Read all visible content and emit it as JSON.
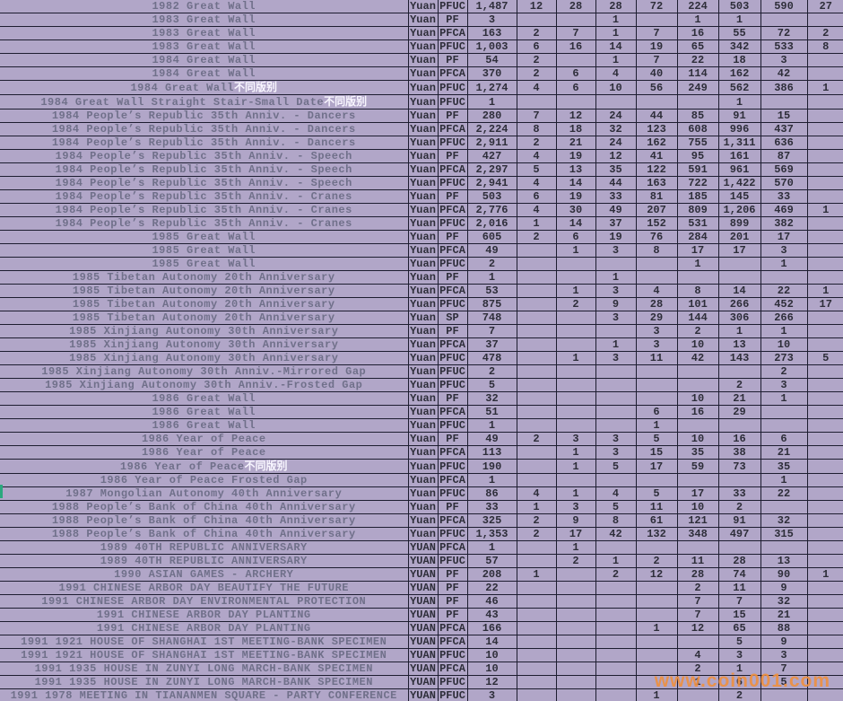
{
  "watermark": "www.coin001.com",
  "colors": {
    "background": "#b1a6c8",
    "gridline": "#1d1d30",
    "name_text": "#70708a",
    "data_text": "#2e2e3a",
    "suffix_text": "#f8f6ff",
    "watermark": "#ee9040",
    "row_marker": "#2ba87e"
  },
  "rows": [
    {
      "name": "1982 Great Wall",
      "suffix": "",
      "currency": "Yuan",
      "grade": "PFUC",
      "total": "1,487",
      "cols": [
        "12",
        "28",
        "28",
        "72",
        "224",
        "503",
        "590",
        "27"
      ]
    },
    {
      "name": "1983 Great Wall",
      "suffix": "",
      "currency": "Yuan",
      "grade": "PF",
      "total": "3",
      "cols": [
        "",
        "",
        "1",
        "",
        "1",
        "1",
        "",
        ""
      ]
    },
    {
      "name": "1983 Great Wall",
      "suffix": "",
      "currency": "Yuan",
      "grade": "PFCA",
      "total": "163",
      "cols": [
        "2",
        "7",
        "1",
        "7",
        "16",
        "55",
        "72",
        "2"
      ]
    },
    {
      "name": "1983 Great Wall",
      "suffix": "",
      "currency": "Yuan",
      "grade": "PFUC",
      "total": "1,003",
      "cols": [
        "6",
        "16",
        "14",
        "19",
        "65",
        "342",
        "533",
        "8"
      ]
    },
    {
      "name": "1984 Great Wall",
      "suffix": "",
      "currency": "Yuan",
      "grade": "PF",
      "total": "54",
      "cols": [
        "2",
        "",
        "1",
        "7",
        "22",
        "18",
        "3",
        ""
      ]
    },
    {
      "name": "1984 Great Wall",
      "suffix": "",
      "currency": "Yuan",
      "grade": "PFCA",
      "total": "370",
      "cols": [
        "2",
        "6",
        "4",
        "40",
        "114",
        "162",
        "42",
        ""
      ]
    },
    {
      "name": "1984 Great Wall",
      "suffix": "不同版别",
      "currency": "Yuan",
      "grade": "PFUC",
      "total": "1,274",
      "cols": [
        "4",
        "6",
        "10",
        "56",
        "249",
        "562",
        "386",
        "1"
      ]
    },
    {
      "name": "1984 Great Wall Straight Stair-Small Date",
      "suffix": "不同版别",
      "currency": "Yuan",
      "grade": "PFUC",
      "total": "1",
      "cols": [
        "",
        "",
        "",
        "",
        "",
        "1",
        "",
        ""
      ]
    },
    {
      "name": "1984 People’s Republic 35th Anniv. - Dancers",
      "suffix": "",
      "currency": "Yuan",
      "grade": "PF",
      "total": "280",
      "cols": [
        "7",
        "12",
        "24",
        "44",
        "85",
        "91",
        "15",
        ""
      ]
    },
    {
      "name": "1984 People’s Republic 35th Anniv. - Dancers",
      "suffix": "",
      "currency": "Yuan",
      "grade": "PFCA",
      "total": "2,224",
      "cols": [
        "8",
        "18",
        "32",
        "123",
        "608",
        "996",
        "437",
        ""
      ]
    },
    {
      "name": "1984 People’s Republic 35th Anniv. - Dancers",
      "suffix": "",
      "currency": "Yuan",
      "grade": "PFUC",
      "total": "2,911",
      "cols": [
        "2",
        "21",
        "24",
        "162",
        "755",
        "1,311",
        "636",
        ""
      ]
    },
    {
      "name": "1984 People’s Republic 35th Anniv. - Speech",
      "suffix": "",
      "currency": "Yuan",
      "grade": "PF",
      "total": "427",
      "cols": [
        "4",
        "19",
        "12",
        "41",
        "95",
        "161",
        "87",
        ""
      ]
    },
    {
      "name": "1984 People’s Republic 35th Anniv. - Speech",
      "suffix": "",
      "currency": "Yuan",
      "grade": "PFCA",
      "total": "2,297",
      "cols": [
        "5",
        "13",
        "35",
        "122",
        "591",
        "961",
        "569",
        ""
      ]
    },
    {
      "name": "1984 People’s Republic 35th Anniv. - Speech",
      "suffix": "",
      "currency": "Yuan",
      "grade": "PFUC",
      "total": "2,941",
      "cols": [
        "4",
        "14",
        "44",
        "163",
        "722",
        "1,422",
        "570",
        ""
      ]
    },
    {
      "name": "1984 People’s Republic 35th Anniv. - Cranes",
      "suffix": "",
      "currency": "Yuan",
      "grade": "PF",
      "total": "503",
      "cols": [
        "6",
        "19",
        "33",
        "81",
        "185",
        "145",
        "33",
        ""
      ]
    },
    {
      "name": "1984 People’s Republic 35th Anniv. - Cranes",
      "suffix": "",
      "currency": "Yuan",
      "grade": "PFCA",
      "total": "2,776",
      "cols": [
        "4",
        "30",
        "49",
        "207",
        "809",
        "1,206",
        "469",
        "1"
      ]
    },
    {
      "name": "1984 People’s Republic 35th Anniv. - Cranes",
      "suffix": "",
      "currency": "Yuan",
      "grade": "PFUC",
      "total": "2,016",
      "cols": [
        "1",
        "14",
        "37",
        "152",
        "531",
        "899",
        "382",
        ""
      ]
    },
    {
      "name": "1985 Great Wall",
      "suffix": "",
      "currency": "Yuan",
      "grade": "PF",
      "total": "605",
      "cols": [
        "2",
        "6",
        "19",
        "76",
        "284",
        "201",
        "17",
        ""
      ]
    },
    {
      "name": "1985 Great Wall",
      "suffix": "",
      "currency": "Yuan",
      "grade": "PFCA",
      "total": "49",
      "cols": [
        "",
        "1",
        "3",
        "8",
        "17",
        "17",
        "3",
        ""
      ]
    },
    {
      "name": "1985 Great Wall",
      "suffix": "",
      "currency": "Yuan",
      "grade": "PFUC",
      "total": "2",
      "cols": [
        "",
        "",
        "",
        "",
        "1",
        "",
        "1",
        ""
      ]
    },
    {
      "name": "1985 Tibetan Autonomy 20th Anniversary",
      "suffix": "",
      "currency": "Yuan",
      "grade": "PF",
      "total": "1",
      "cols": [
        "",
        "",
        "1",
        "",
        "",
        "",
        "",
        ""
      ]
    },
    {
      "name": "1985 Tibetan Autonomy 20th Anniversary",
      "suffix": "",
      "currency": "Yuan",
      "grade": "PFCA",
      "total": "53",
      "cols": [
        "",
        "1",
        "3",
        "4",
        "8",
        "14",
        "22",
        "1"
      ]
    },
    {
      "name": "1985 Tibetan Autonomy 20th Anniversary",
      "suffix": "",
      "currency": "Yuan",
      "grade": "PFUC",
      "total": "875",
      "cols": [
        "",
        "2",
        "9",
        "28",
        "101",
        "266",
        "452",
        "17"
      ]
    },
    {
      "name": "1985 Tibetan Autonomy 20th Anniversary",
      "suffix": "",
      "currency": "Yuan",
      "grade": "SP",
      "total": "748",
      "cols": [
        "",
        "",
        "3",
        "29",
        "144",
        "306",
        "266",
        ""
      ]
    },
    {
      "name": "1985 Xinjiang Autonomy 30th Anniversary",
      "suffix": "",
      "currency": "Yuan",
      "grade": "PF",
      "total": "7",
      "cols": [
        "",
        "",
        "",
        "3",
        "2",
        "1",
        "1",
        ""
      ]
    },
    {
      "name": "1985 Xinjiang Autonomy 30th Anniversary",
      "suffix": "",
      "currency": "Yuan",
      "grade": "PFCA",
      "total": "37",
      "cols": [
        "",
        "",
        "1",
        "3",
        "10",
        "13",
        "10",
        ""
      ]
    },
    {
      "name": "1985 Xinjiang Autonomy 30th Anniversary",
      "suffix": "",
      "currency": "Yuan",
      "grade": "PFUC",
      "total": "478",
      "cols": [
        "",
        "1",
        "3",
        "11",
        "42",
        "143",
        "273",
        "5"
      ]
    },
    {
      "name": "1985 Xinjiang Autonomy 30th Anniv.-Mirrored Gap",
      "suffix": "",
      "currency": "Yuan",
      "grade": "PFUC",
      "total": "2",
      "cols": [
        "",
        "",
        "",
        "",
        "",
        "",
        "2",
        ""
      ]
    },
    {
      "name": "1985 Xinjiang Autonomy 30th Anniv.-Frosted Gap",
      "suffix": "",
      "currency": "Yuan",
      "grade": "PFUC",
      "total": "5",
      "cols": [
        "",
        "",
        "",
        "",
        "",
        "2",
        "3",
        ""
      ]
    },
    {
      "name": "1986 Great Wall",
      "suffix": "",
      "currency": "Yuan",
      "grade": "PF",
      "total": "32",
      "cols": [
        "",
        "",
        "",
        "",
        "10",
        "21",
        "1",
        ""
      ]
    },
    {
      "name": "1986 Great Wall",
      "suffix": "",
      "currency": "Yuan",
      "grade": "PFCA",
      "total": "51",
      "cols": [
        "",
        "",
        "",
        "6",
        "16",
        "29",
        "",
        ""
      ]
    },
    {
      "name": "1986 Great Wall",
      "suffix": "",
      "currency": "Yuan",
      "grade": "PFUC",
      "total": "1",
      "cols": [
        "",
        "",
        "",
        "1",
        "",
        "",
        "",
        ""
      ]
    },
    {
      "name": "1986 Year of Peace",
      "suffix": "",
      "currency": "Yuan",
      "grade": "PF",
      "total": "49",
      "cols": [
        "2",
        "3",
        "3",
        "5",
        "10",
        "16",
        "6",
        ""
      ]
    },
    {
      "name": "1986 Year of Peace",
      "suffix": "",
      "currency": "Yuan",
      "grade": "PFCA",
      "total": "113",
      "cols": [
        "",
        "1",
        "3",
        "15",
        "35",
        "38",
        "21",
        ""
      ]
    },
    {
      "name": "1986 Year of Peace",
      "suffix": "不同版别",
      "currency": "Yuan",
      "grade": "PFUC",
      "total": "190",
      "cols": [
        "",
        "1",
        "5",
        "17",
        "59",
        "73",
        "35",
        ""
      ]
    },
    {
      "name": "1986 Year of Peace Frosted Gap",
      "suffix": "",
      "currency": "Yuan",
      "grade": "PFCA",
      "total": "1",
      "cols": [
        "",
        "",
        "",
        "",
        "",
        "",
        "1",
        ""
      ]
    },
    {
      "name": "1987 Mongolian Autonomy 40th Anniversary",
      "suffix": "",
      "currency": "Yuan",
      "grade": "PFUC",
      "total": "86",
      "cols": [
        "4",
        "1",
        "4",
        "5",
        "17",
        "33",
        "22",
        ""
      ]
    },
    {
      "name": "1988 People’s Bank of China 40th Anniversary",
      "suffix": "",
      "currency": "Yuan",
      "grade": "PF",
      "total": "33",
      "cols": [
        "1",
        "3",
        "5",
        "11",
        "10",
        "2",
        "",
        ""
      ]
    },
    {
      "name": "1988 People’s Bank of China 40th Anniversary",
      "suffix": "",
      "currency": "Yuan",
      "grade": "PFCA",
      "total": "325",
      "cols": [
        "2",
        "9",
        "8",
        "61",
        "121",
        "91",
        "32",
        ""
      ]
    },
    {
      "name": "1988 People’s Bank of China 40th Anniversary",
      "suffix": "",
      "currency": "Yuan",
      "grade": "PFUC",
      "total": "1,353",
      "cols": [
        "2",
        "17",
        "42",
        "132",
        "348",
        "497",
        "315",
        ""
      ]
    },
    {
      "name": "1989 40TH REPUBLIC ANNIVERSARY",
      "suffix": "",
      "currency": "YUAN",
      "grade": "PFCA",
      "total": "1",
      "cols": [
        "",
        "1",
        "",
        "",
        "",
        "",
        "",
        ""
      ]
    },
    {
      "name": "1989 40TH REPUBLIC ANNIVERSARY",
      "suffix": "",
      "currency": "YUAN",
      "grade": "PFUC",
      "total": "57",
      "cols": [
        "",
        "2",
        "1",
        "2",
        "11",
        "28",
        "13",
        ""
      ]
    },
    {
      "name": "1990 ASIAN GAMES - ARCHERY",
      "suffix": "",
      "currency": "YUAN",
      "grade": "PF",
      "total": "208",
      "cols": [
        "1",
        "",
        "2",
        "12",
        "28",
        "74",
        "90",
        "1"
      ]
    },
    {
      "name": "1991 CHINESE ARBOR DAY BEAUTIFY THE FUTURE",
      "suffix": "",
      "currency": "YUAN",
      "grade": "PF",
      "total": "22",
      "cols": [
        "",
        "",
        "",
        "",
        "2",
        "11",
        "9",
        ""
      ]
    },
    {
      "name": "1991 CHINESE ARBOR DAY ENVIRONMENTAL PROTECTION",
      "suffix": "",
      "currency": "YUAN",
      "grade": "PF",
      "total": "46",
      "cols": [
        "",
        "",
        "",
        "",
        "7",
        "7",
        "32",
        ""
      ]
    },
    {
      "name": "1991 CHINESE ARBOR DAY PLANTING",
      "suffix": "",
      "currency": "YUAN",
      "grade": "PF",
      "total": "43",
      "cols": [
        "",
        "",
        "",
        "",
        "7",
        "15",
        "21",
        ""
      ]
    },
    {
      "name": "1991 CHINESE ARBOR DAY PLANTING",
      "suffix": "",
      "currency": "YUAN",
      "grade": "PFCA",
      "total": "166",
      "cols": [
        "",
        "",
        "",
        "1",
        "12",
        "65",
        "88",
        ""
      ]
    },
    {
      "name": "1991 1921 HOUSE OF SHANGHAI 1ST MEETING-BANK SPECIMEN",
      "suffix": "",
      "currency": "YUAN",
      "grade": "PFCA",
      "total": "14",
      "cols": [
        "",
        "",
        "",
        "",
        "",
        "5",
        "9",
        ""
      ]
    },
    {
      "name": "1991 1921 HOUSE OF SHANGHAI 1ST MEETING-BANK SPECIMEN",
      "suffix": "",
      "currency": "YUAN",
      "grade": "PFUC",
      "total": "10",
      "cols": [
        "",
        "",
        "",
        "",
        "4",
        "3",
        "3",
        ""
      ]
    },
    {
      "name": "1991 1935 HOUSE IN ZUNYI LONG MARCH-BANK SPECIMEN",
      "suffix": "",
      "currency": "YUAN",
      "grade": "PFCA",
      "total": "10",
      "cols": [
        "",
        "",
        "",
        "",
        "2",
        "1",
        "7",
        ""
      ]
    },
    {
      "name": "1991 1935 HOUSE IN ZUNYI LONG MARCH-BANK SPECIMEN",
      "suffix": "",
      "currency": "YUAN",
      "grade": "PFUC",
      "total": "12",
      "cols": [
        "",
        "",
        "",
        "",
        "1",
        "6",
        "5",
        ""
      ]
    },
    {
      "name": "1991 1978 MEETING IN TIANANMEN SQUARE - PARTY CONFERENCE",
      "suffix": "",
      "currency": "YUAN",
      "grade": "PFUC",
      "total": "3",
      "cols": [
        "",
        "",
        "",
        "1",
        "",
        "2",
        "",
        ""
      ]
    }
  ]
}
